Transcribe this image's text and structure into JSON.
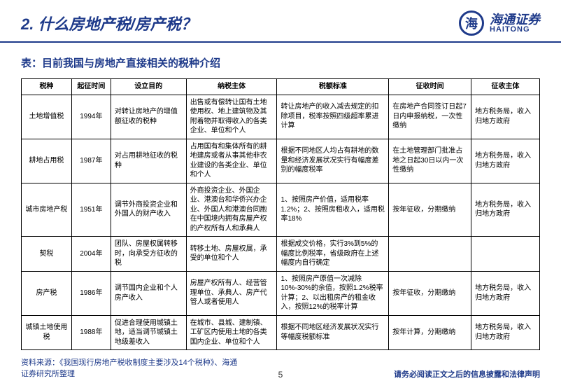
{
  "header": {
    "title": "2. 什么房地产税/房产税？",
    "brand_cn": "海通证券",
    "brand_en": "HAITONG",
    "brand_symbol": "海"
  },
  "subtitle": "表：目前我国与房地产直接相关的税种介绍",
  "table": {
    "headers": [
      "税种",
      "起征时间",
      "设立目的",
      "纳税主体",
      "税额标准",
      "征收时间",
      "征收主体"
    ],
    "rows": [
      {
        "type": "土地增值税",
        "year": "1994年",
        "purpose": "对转让房地产的增值额征收的税种",
        "subject": "出售或有偿转让国有土地使用权、地上建筑物及其附着物并取得收入的各类企业、单位和个人",
        "standard": "转让房地产的收入减去规定的扣除项目，税率按照四级超率累进计算",
        "time": "在房地产合同签订日起7日内申报纳税，一次性缴纳",
        "entity": "地方税务局，收入归地方政府"
      },
      {
        "type": "耕地占用税",
        "year": "1987年",
        "purpose": "对占用耕地征收的税种",
        "subject": "占用国有和集体所有的耕地建房或者从事其他非农业建设的各类企业、单位和个人",
        "standard": "根据不同地区人均占有耕地的数量和经济发展状况实行有幅度差别的幅度税率",
        "time": "在土地管理部门批准占地之日起30日以内一次性缴纳",
        "entity": "地方税务局，收入归地方政府"
      },
      {
        "type": "城市房地产税",
        "year": "1951年",
        "purpose": "调节外商投资企业和外国人的财产收入",
        "subject": "外商投资企业、外国企业、港澳台和华侨兴办企业、外国人和港澳台同胞在中国境内拥有房屋产权的产权所有人和承典人",
        "standard": "1、按照房产价值，适用税率1.2%；2、按照房租收入，适用税率18%",
        "time": "按年征收，分期缴纳",
        "entity": "地方税务局，收入归地方政府"
      },
      {
        "type": "契税",
        "year": "2004年",
        "purpose": "团队、房屋权属转移时，向承受方征收的税",
        "subject": "转移土地、房屋权属，承受的单位和个人",
        "standard": "根据成交价格，实行3%到5%的幅度比例税率，省级政府在上述幅度内自行确定",
        "time": "",
        "entity": ""
      },
      {
        "type": "房产税",
        "year": "1986年",
        "purpose": "调节国内企业和个人房产收入",
        "subject": "房屋产权所有人、经营管理单位、承典人、房产代管人或者使用人",
        "standard": "1、按照房产原值一次减除10%-30%的余值，按照1.2%税率计算；2、以出租房产的租金收入，按照12%的税率计算",
        "time": "按年征收，分期缴纳",
        "entity": "地方税务局，收入归地方政府"
      },
      {
        "type": "城镇土地使用税",
        "year": "1988年",
        "purpose": "促进合理使用城镇土地，适当调节城镇土地级差收入",
        "subject": "在城市、县城、建制镇、工矿区内使用土地的各类国内企业、单位和个人",
        "standard": "根据不同地区经济发展状况实行等幅度税额标准",
        "time": "按年计算，分期缴纳",
        "entity": "地方税务局，收入归地方政府"
      }
    ]
  },
  "footer": {
    "source": "资料来源：《我国现行房地产税收制度主要涉及14个税种》、海通证券研究所整理",
    "page": "5",
    "disclaimer": "请务必阅读正文之后的信息披露和法律声明"
  }
}
